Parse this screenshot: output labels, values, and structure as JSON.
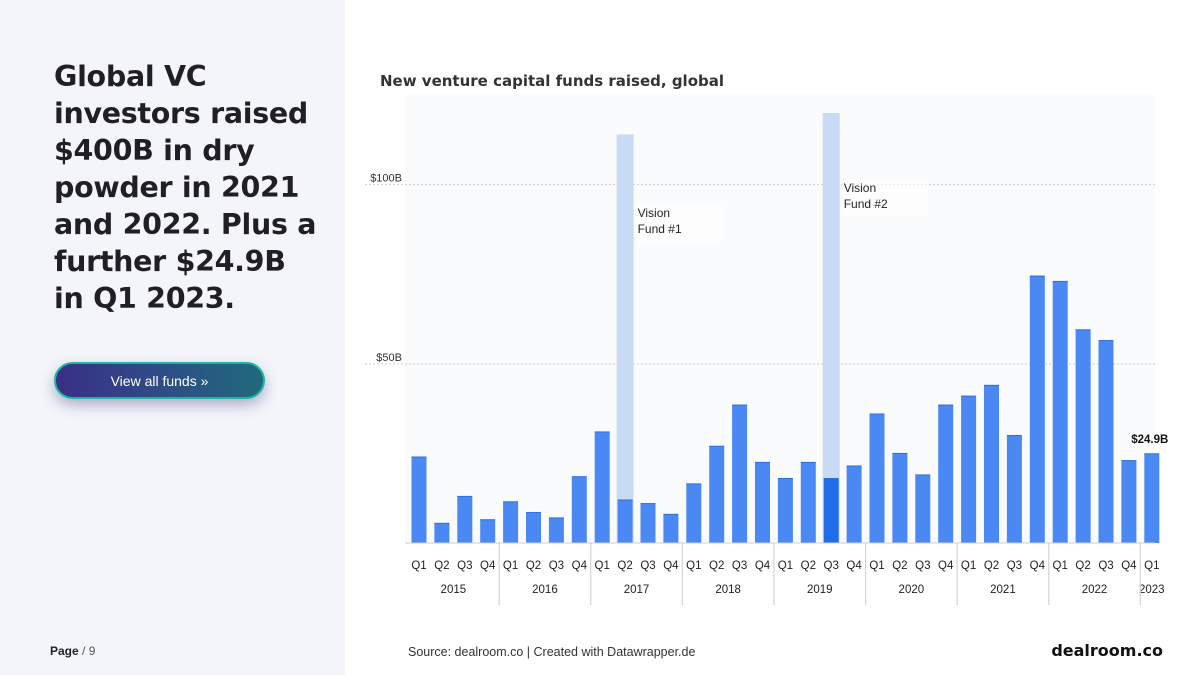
{
  "headline": "Global VC investors raised $400B in dry powder in 2021 and 2022. Plus a further $24.9B in Q1 2023.",
  "cta_label": "View all funds »",
  "page": {
    "label": "Page",
    "number": "/ 9"
  },
  "source": "Source: dealroom.co | Created with Datawrapper.de",
  "brand": "dealroom.co",
  "colors": {
    "bar": "#4a89f3",
    "highlight": "#1f6ee8",
    "vision_fund": "#c9daf7",
    "panel": "#f4f5fb"
  },
  "chart_data": {
    "type": "bar",
    "title": "New venture capital funds raised, global",
    "xlabel": "",
    "ylabel": "",
    "ylim": [
      0,
      120
    ],
    "yticks": [
      {
        "value": 50,
        "label": "$50B"
      },
      {
        "value": 100,
        "label": "$100B"
      }
    ],
    "grid": true,
    "quarters": [
      "Q1",
      "Q2",
      "Q3",
      "Q4",
      "Q1",
      "Q2",
      "Q3",
      "Q4",
      "Q1",
      "Q2",
      "Q3",
      "Q4",
      "Q1",
      "Q2",
      "Q3",
      "Q4",
      "Q1",
      "Q2",
      "Q3",
      "Q4",
      "Q1",
      "Q2",
      "Q3",
      "Q4",
      "Q1",
      "Q2",
      "Q3",
      "Q4",
      "Q1",
      "Q2",
      "Q3",
      "Q4",
      "Q1"
    ],
    "years": [
      {
        "label": "2015",
        "start": 0,
        "count": 4
      },
      {
        "label": "2016",
        "start": 4,
        "count": 4
      },
      {
        "label": "2017",
        "start": 8,
        "count": 4
      },
      {
        "label": "2018",
        "start": 12,
        "count": 4
      },
      {
        "label": "2019",
        "start": 16,
        "count": 4
      },
      {
        "label": "2020",
        "start": 20,
        "count": 4
      },
      {
        "label": "2021",
        "start": 24,
        "count": 4
      },
      {
        "label": "2022",
        "start": 28,
        "count": 4
      },
      {
        "label": "2023",
        "start": 32,
        "count": 1
      }
    ],
    "series": [
      {
        "name": "",
        "values": [
          24,
          5.5,
          13,
          6.5,
          11.5,
          8.5,
          7,
          18.5,
          31,
          12,
          11,
          8,
          16.5,
          27,
          38.5,
          22.5,
          18,
          22.5,
          18,
          21.5,
          36,
          25,
          19,
          38.5,
          41,
          44,
          30,
          74.5,
          73,
          59.5,
          56.5,
          23,
          24.9
        ]
      },
      {
        "name": "",
        "values": [
          0,
          0,
          0,
          0,
          0,
          0,
          0,
          0,
          0,
          114,
          0,
          0,
          0,
          0,
          0,
          0,
          0,
          0,
          120,
          0,
          0,
          0,
          0,
          0,
          0,
          0,
          0,
          0,
          0,
          0,
          0,
          0,
          0
        ]
      }
    ],
    "highlight_index": 18,
    "annotations": [
      {
        "text_line1": "Vision",
        "text_line2": "Fund #1",
        "index": 9,
        "y": 91
      },
      {
        "text_line1": "Vision",
        "text_line2": "Fund #2",
        "index": 18,
        "y": 98
      }
    ],
    "value_label": {
      "index": 32,
      "text": "$24.9B"
    }
  }
}
